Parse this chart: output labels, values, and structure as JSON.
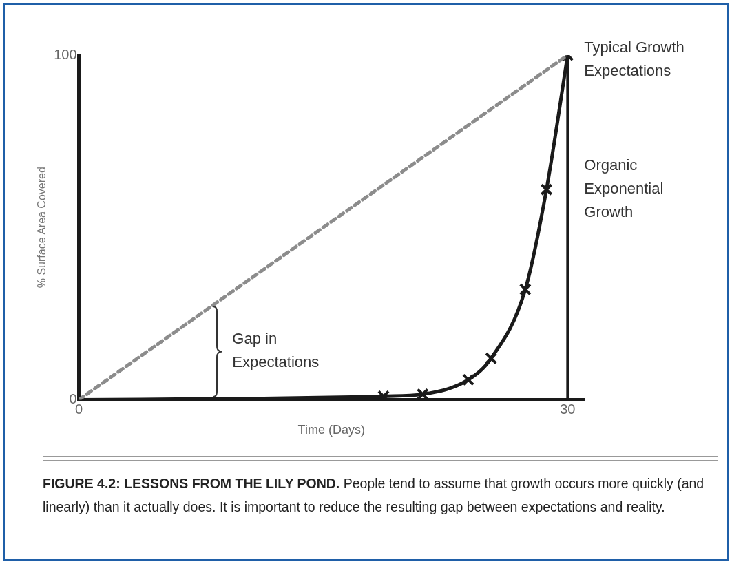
{
  "chart_data": {
    "type": "line",
    "title": "FIGURE 4.2: LESSONS FROM THE LILY POND.",
    "subtitle": "People tend to assume that growth occurs more quickly (and linearly) than it actually does. It is important to reduce the resulting gap between expectations and reality.",
    "xlabel": "Time (Days)",
    "ylabel": "% Surface Area Covered",
    "xlim": [
      0,
      31
    ],
    "ylim": [
      0,
      100
    ],
    "xticks": [
      0,
      30
    ],
    "yticks": [
      0,
      100
    ],
    "grid": false,
    "legend": false,
    "series": [
      {
        "type": "line",
        "name": "Typical Growth Expectations",
        "color": "#8c8c8c",
        "line_style": "dashed",
        "marker": "none",
        "x": [
          0,
          30
        ],
        "values": [
          0,
          100
        ]
      },
      {
        "type": "line",
        "name": "Organic Exponential Growth",
        "color": "#1a1a1a",
        "line_style": "solid",
        "marker": "none",
        "x": [
          0,
          10,
          17,
          18.7,
          21.1,
          23.9,
          25.3,
          27.4,
          28.7,
          30
        ],
        "values": [
          0,
          0.3,
          0.8,
          1,
          1.6,
          5.8,
          12,
          32,
          61,
          100
        ]
      },
      {
        "type": "scatter",
        "color": "#1a1a1a",
        "marker": "cross",
        "x": [
          18.7,
          21.1,
          23.9,
          25.3,
          27.4,
          28.7,
          30
        ],
        "values": [
          1,
          1.6,
          5.8,
          12,
          32,
          61,
          100
        ]
      }
    ],
    "ref_lines": [
      {
        "axis": "x",
        "value": 30,
        "label": null,
        "color": "#1a1a1a"
      }
    ],
    "annotations": [
      {
        "text": "Gap in Expectations",
        "x": 8.4,
        "y": 28
      }
    ]
  }
}
